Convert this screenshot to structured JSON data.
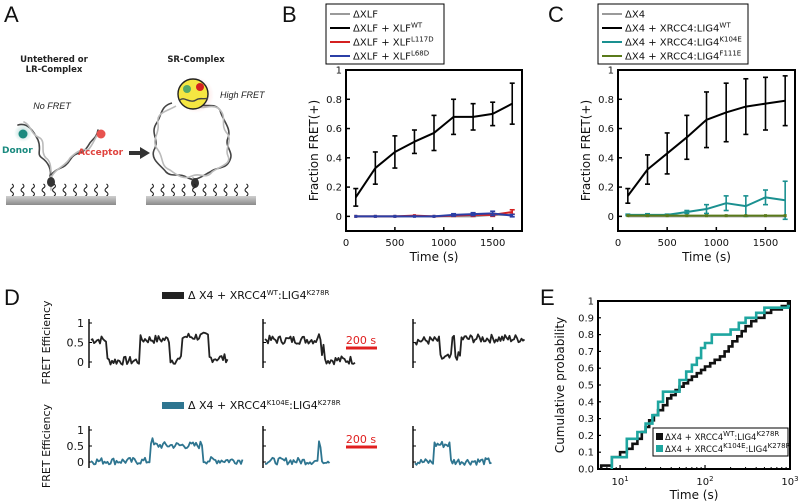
{
  "figure": {
    "panels": [
      "A",
      "B",
      "C",
      "D",
      "E"
    ]
  },
  "panelA": {
    "label": "A",
    "left_title_line1": "Untethered or",
    "left_title_line2": "LR-Complex",
    "no_fret": "No FRET",
    "donor": "Donor",
    "acceptor": "Acceptor",
    "right_title": "SR-Complex",
    "high_fret": "High FRET",
    "colors": {
      "donor": "#1a8a7f",
      "acceptor": "#e8534f",
      "complex": "#f5e642"
    }
  },
  "chart_data": [
    {
      "id": "B",
      "type": "line",
      "title": "",
      "panel_label": "B",
      "xlabel": "Time (s)",
      "ylabel": "Fraction FRET(+)",
      "xlim": [
        0,
        1800
      ],
      "ylim": [
        -0.1,
        1
      ],
      "xticks": [
        0,
        500,
        1000,
        1500
      ],
      "yticks": [
        0,
        0.2,
        0.4,
        0.6,
        0.8,
        1
      ],
      "ytick_labels": [
        "0",
        "0.2",
        "0.4",
        "0.6",
        "0.8",
        "1"
      ],
      "legend_position": "top",
      "x": [
        100,
        300,
        500,
        700,
        900,
        1100,
        1300,
        1500,
        1700
      ],
      "series": [
        {
          "name": "ΔXLF",
          "sup": "",
          "color": "#9a9a9a",
          "values": [
            0,
            0,
            0,
            0,
            0,
            0,
            0,
            0.01,
            0.01
          ],
          "err": [
            0,
            0,
            0,
            0,
            0,
            0,
            0,
            0,
            0
          ]
        },
        {
          "name": "ΔXLF + XLF",
          "sup": "WT",
          "color": "#000000",
          "values": [
            0.13,
            0.33,
            0.44,
            0.51,
            0.57,
            0.68,
            0.68,
            0.7,
            0.77
          ],
          "err": [
            0.06,
            0.11,
            0.11,
            0.08,
            0.12,
            0.12,
            0.09,
            0.08,
            0.14
          ]
        },
        {
          "name": "ΔXLF + XLF",
          "sup": "L117D",
          "color": "#d42020",
          "values": [
            0,
            0,
            0,
            0.005,
            0,
            0.005,
            0.01,
            0.01,
            0.03
          ],
          "err": [
            0,
            0,
            0,
            0,
            0,
            0.005,
            0.01,
            0.01,
            0.015
          ]
        },
        {
          "name": "ΔXLF + XLF",
          "sup": "L68D",
          "color": "#2b3fa6",
          "values": [
            0,
            0,
            0,
            0,
            0,
            0.01,
            0.015,
            0.02,
            0.005
          ],
          "err": [
            0,
            0,
            0,
            0,
            0,
            0.008,
            0.01,
            0.015,
            0.008
          ]
        }
      ]
    },
    {
      "id": "C",
      "type": "line",
      "title": "",
      "panel_label": "C",
      "xlabel": "Time (s)",
      "ylabel": "Fraction FRET(+)",
      "xlim": [
        0,
        1800
      ],
      "ylim": [
        -0.1,
        1
      ],
      "xticks": [
        0,
        500,
        1000,
        1500
      ],
      "yticks": [
        0,
        0.2,
        0.4,
        0.6,
        0.8,
        1
      ],
      "ytick_labels": [
        "0",
        "0.2",
        "0.4",
        "0.6",
        "0.8",
        "1"
      ],
      "legend_position": "top",
      "x": [
        100,
        300,
        500,
        700,
        900,
        1100,
        1300,
        1500,
        1700
      ],
      "series": [
        {
          "name": "ΔX4",
          "sup": "",
          "color": "#9a9a9a",
          "values": [
            0,
            0,
            0,
            0,
            0,
            0,
            0,
            0,
            0
          ],
          "err": [
            0,
            0,
            0,
            0,
            0,
            0,
            0,
            0,
            0
          ]
        },
        {
          "name": "ΔX4 + XRCC4:LIG4",
          "sup": "WT",
          "color": "#000000",
          "values": [
            0.14,
            0.32,
            0.43,
            0.54,
            0.66,
            0.71,
            0.75,
            0.77,
            0.79
          ],
          "err": [
            0.05,
            0.1,
            0.14,
            0.15,
            0.19,
            0.2,
            0.19,
            0.18,
            0.17
          ]
        },
        {
          "name": "ΔX4 + XRCC4:LIG4",
          "sup": "K104E",
          "color": "#1a9090",
          "values": [
            0.01,
            0.01,
            0.01,
            0.03,
            0.05,
            0.09,
            0.07,
            0.13,
            0.11
          ],
          "err": [
            0.005,
            0.008,
            0.005,
            0.01,
            0.03,
            0.05,
            0.07,
            0.05,
            0.13
          ]
        },
        {
          "name": "ΔX4 + XRCC4:LIG4",
          "sup": "F111E",
          "color": "#5a7a1a",
          "values": [
            0.005,
            0.005,
            0.005,
            0.005,
            0.005,
            0.005,
            0.005,
            0.005,
            0.005
          ],
          "err": [
            0,
            0,
            0,
            0,
            0,
            0,
            0,
            0,
            0
          ]
        }
      ]
    },
    {
      "id": "D",
      "type": "line",
      "panel_label": "D",
      "ylabel": "FRET Efficiency",
      "yticks": [
        0,
        0.5,
        1
      ],
      "ytick_labels": [
        "0",
        "0.5",
        "1"
      ],
      "scale_bar": "200 s",
      "scale_bar_color": "#e02020",
      "rows": [
        {
          "legend": "Δ X4 + XRCC4",
          "legend_sup1": "WT",
          "legend_mid": ":LIG4",
          "legend_sup2": "K278R",
          "color": "#222222",
          "traces": [
            {
              "levels": [
                [
                  0,
                  0.12,
                  0.57
                ],
                [
                  0.12,
                  0.36,
                  0.03
                ],
                [
                  0.36,
                  0.57,
                  0.58
                ],
                [
                  0.57,
                  0.66,
                  0.05
                ],
                [
                  0.66,
                  0.86,
                  0.65
                ],
                [
                  0.86,
                  1.0,
                  0.1
                ]
              ]
            },
            {
              "levels": [
                [
                  0,
                  0.57,
                  0.57
                ],
                [
                  0.57,
                  0.62,
                  0.65
                ],
                [
                  0.62,
                  0.64,
                  0.25
                ],
                [
                  0.64,
                  0.66,
                  0.55
                ],
                [
                  0.66,
                  1.0,
                  0.05
                ]
              ]
            },
            {
              "levels": [
                [
                  0,
                  0.22,
                  0.55
                ],
                [
                  0.22,
                  0.33,
                  0.1
                ],
                [
                  0.33,
                  0.36,
                  0.6
                ],
                [
                  0.36,
                  0.42,
                  0.15
                ],
                [
                  0.42,
                  1.0,
                  0.6
                ]
              ]
            }
          ]
        },
        {
          "legend": "Δ X4 + XRCC4",
          "legend_sup1": "K104E",
          "legend_mid": ":LIG4",
          "legend_sup2": "K278R",
          "color": "#2e7590",
          "traces": [
            {
              "levels": [
                [
                  0,
                  0.39,
                  0.03
                ],
                [
                  0.39,
                  0.41,
                  0.65
                ],
                [
                  0.41,
                  0.72,
                  0.52
                ],
                [
                  0.72,
                  0.74,
                  0.55
                ],
                [
                  0.74,
                  1.0,
                  0.05
                ]
              ]
            },
            {
              "levels": [
                [
                  0,
                  0.82,
                  0.03
                ],
                [
                  0.82,
                  0.86,
                  0.55
                ],
                [
                  0.86,
                  1.0,
                  0.05
                ]
              ]
            },
            {
              "levels": [
                [
                  0,
                  0.25,
                  0.0
                ],
                [
                  0.25,
                  0.46,
                  0.55
                ],
                [
                  0.46,
                  1.0,
                  0.02
                ]
              ]
            }
          ]
        }
      ]
    },
    {
      "id": "E",
      "type": "line",
      "panel_label": "E",
      "xlabel": "Time (s)",
      "ylabel": "Cumulative probability",
      "xscale": "log",
      "xlim": [
        5.5,
        1000
      ],
      "ylim": [
        0,
        1
      ],
      "xticks": [
        10,
        100,
        1000
      ],
      "xtick_labels": [
        "10",
        "10",
        "10"
      ],
      "xtick_exps": [
        "1",
        "2",
        "3"
      ],
      "yticks": [
        0,
        0.1,
        0.2,
        0.3,
        0.4,
        0.5,
        0.6,
        0.7,
        0.8,
        0.9,
        1
      ],
      "ytick_labels": [
        "0.0",
        "0.1",
        "0.2",
        "0.3",
        "0.4",
        "0.5",
        "0.6",
        "0.7",
        "0.8",
        "0.9",
        "1"
      ],
      "legend_position": "bottom-right",
      "series": [
        {
          "name": "ΔX4 + XRCC4",
          "sup1": "WT",
          "mid": ":LIG4",
          "sup2": "K278R",
          "color": "#111111",
          "x": [
            6,
            8,
            10,
            12,
            14,
            16,
            18,
            20,
            22,
            25,
            28,
            32,
            36,
            40,
            45,
            50,
            56,
            63,
            70,
            80,
            90,
            100,
            115,
            130,
            150,
            170,
            190,
            210,
            240,
            270,
            300,
            350,
            400,
            500,
            600,
            800,
            950
          ],
          "values": [
            0.02,
            0.07,
            0.1,
            0.12,
            0.15,
            0.18,
            0.22,
            0.25,
            0.29,
            0.32,
            0.35,
            0.38,
            0.42,
            0.44,
            0.47,
            0.49,
            0.51,
            0.53,
            0.55,
            0.57,
            0.59,
            0.61,
            0.63,
            0.65,
            0.67,
            0.7,
            0.73,
            0.76,
            0.79,
            0.82,
            0.85,
            0.88,
            0.9,
            0.93,
            0.95,
            0.97,
            0.99
          ]
        },
        {
          "name": "ΔX4 + XRCC4",
          "sup1": "K104E",
          "mid": ":LIG4",
          "sup2": "K278R",
          "color": "#1fa6a0",
          "x": [
            8,
            12,
            16,
            20,
            24,
            28,
            32,
            40,
            50,
            60,
            70,
            80,
            90,
            100,
            120,
            150,
            200,
            250,
            300,
            400,
            500,
            950
          ],
          "values": [
            0.07,
            0.18,
            0.22,
            0.27,
            0.32,
            0.4,
            0.46,
            0.46,
            0.53,
            0.58,
            0.62,
            0.66,
            0.72,
            0.75,
            0.8,
            0.8,
            0.83,
            0.87,
            0.9,
            0.93,
            0.96,
            0.97
          ]
        }
      ]
    }
  ]
}
